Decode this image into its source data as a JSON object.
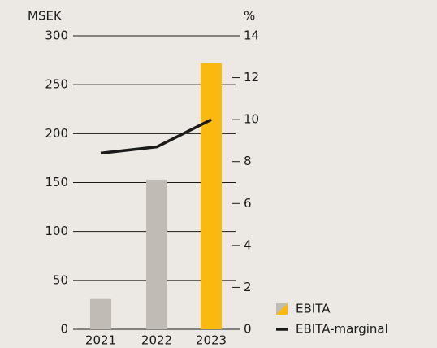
{
  "chart_data": {
    "type": "bar",
    "y_label": "MSEK",
    "y2_label": "%",
    "categories": [
      "2021",
      "2022",
      "2023"
    ],
    "series": [
      {
        "name": "EBITA",
        "type": "bar",
        "colors": [
          "#c0bbb4",
          "#c0bbb4",
          "#fbb90f"
        ],
        "values": [
          31,
          153,
          272
        ]
      },
      {
        "name": "EBITA-marginal",
        "type": "line",
        "color": "#1a1a1a",
        "axis": "y2",
        "values": [
          8.4,
          8.7,
          10.0
        ]
      }
    ],
    "ylim": [
      0,
      300
    ],
    "yticks": [
      0,
      50,
      100,
      150,
      200,
      250,
      300
    ],
    "y2lim": [
      0,
      14
    ],
    "y2ticks": [
      0,
      2,
      4,
      6,
      8,
      10,
      12,
      14
    ],
    "grid": true
  }
}
